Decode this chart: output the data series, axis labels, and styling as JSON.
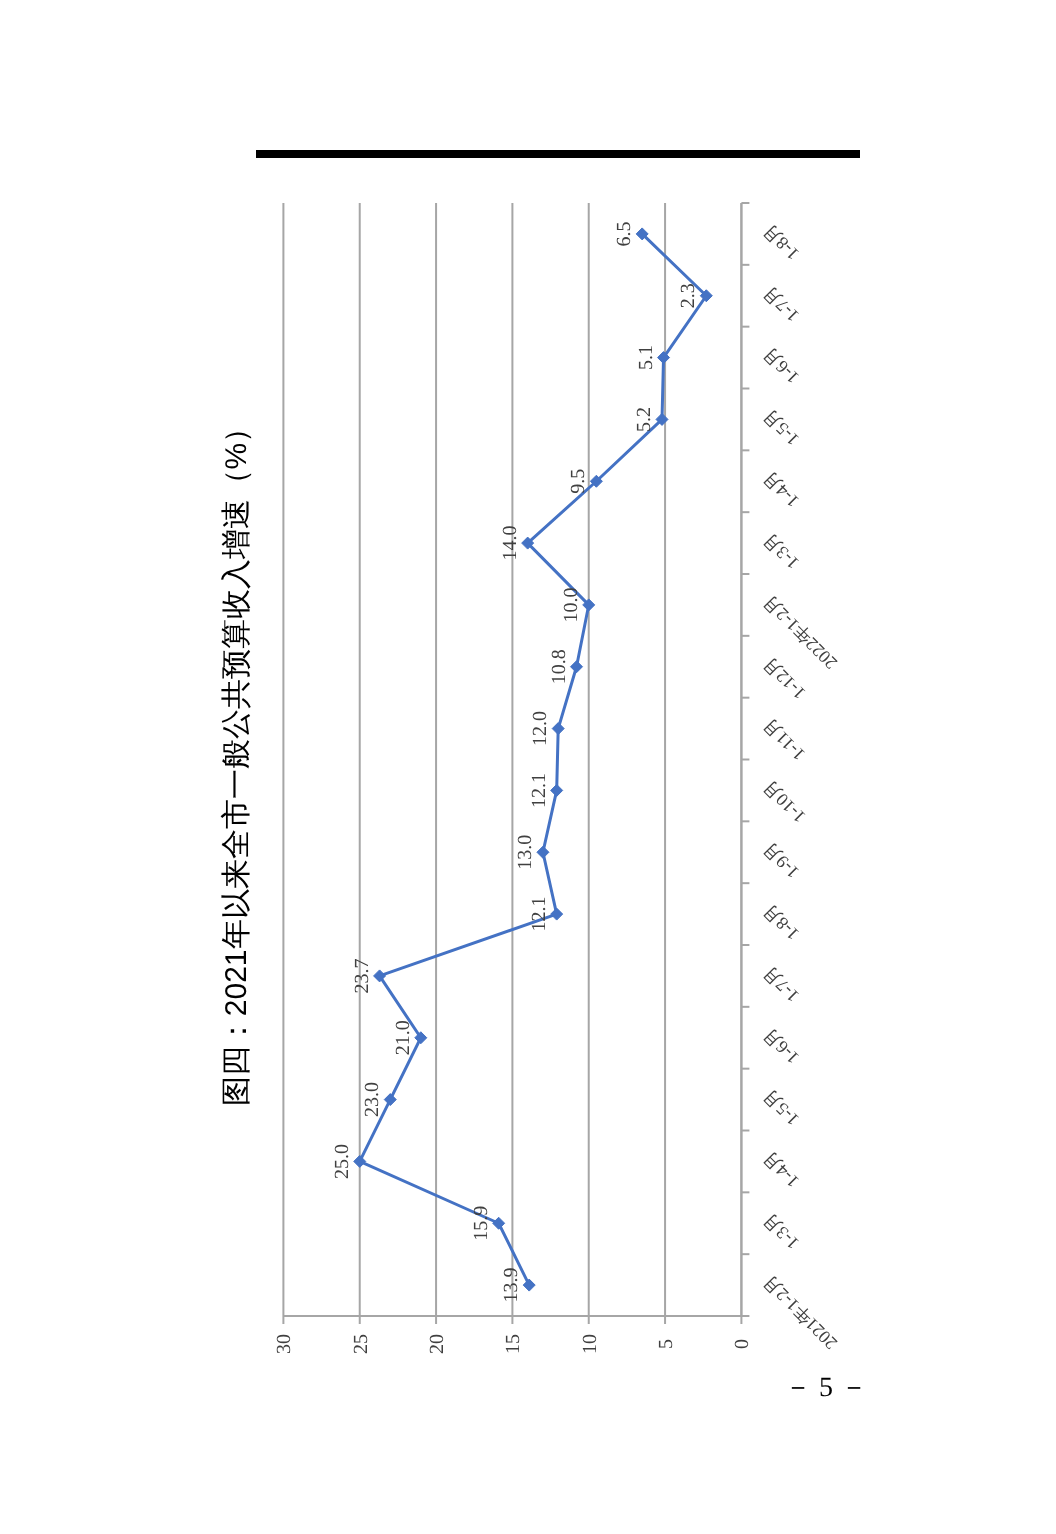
{
  "chart_data": {
    "type": "line",
    "orientation": "horizontal",
    "title": "图四：2021年以来全市一般公共预算收入增速（%）",
    "categories": [
      "1-8月",
      "1-7月",
      "1-6月",
      "1-5月",
      "1-4月",
      "1-3月",
      "2022年1-2月",
      "1-12月",
      "1-11月",
      "1-10月",
      "1-9月",
      "1-8月",
      "1-7月",
      "1-6月",
      "1-5月",
      "1-4月",
      "1-3月",
      "2021年1-2月"
    ],
    "values": [
      6.5,
      2.3,
      5.1,
      5.2,
      9.5,
      14.0,
      10.0,
      10.8,
      12.0,
      12.1,
      13.0,
      12.1,
      23.7,
      21.0,
      23.0,
      25.0,
      15.9,
      13.9
    ],
    "value_labels": [
      "6.5",
      "2.3",
      "5.1",
      "5.2",
      "9.5",
      "14.0",
      "10.0",
      "10.8",
      "12.0",
      "12.1",
      "13.0",
      "12.1",
      "23.7",
      "21.0",
      "23.0",
      "25.0",
      "15.9",
      "13.9"
    ],
    "color": "#4472c4",
    "marker": "diamond",
    "line_style": "solid",
    "xlim": [
      30,
      0
    ],
    "xticks": [
      30,
      25,
      20,
      15,
      10,
      5,
      0
    ],
    "grid": "x",
    "annotations": [
      "－ 5 －"
    ]
  }
}
